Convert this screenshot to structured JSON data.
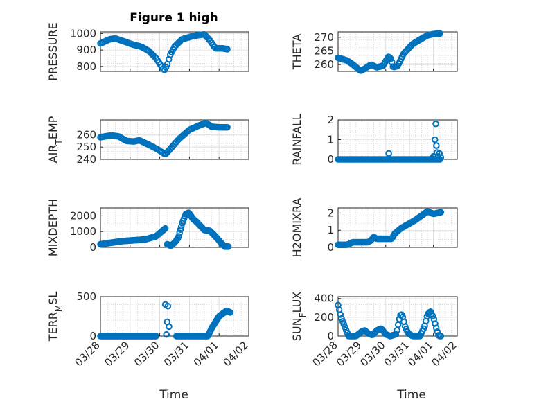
{
  "figure": {
    "title": "Figure 1 high"
  },
  "x_ticks": [
    "03/28",
    "03/29",
    "03/30",
    "03/31",
    "04/01",
    "04/02"
  ],
  "x_label": "Time",
  "marker_color": "#0072BD",
  "chart_data": [
    {
      "type": "scatter",
      "ylabel": "PRESSURE",
      "ylim": [
        770,
        1010
      ],
      "yticks": [
        800,
        900,
        1000
      ],
      "xlim": [
        0,
        4
      ],
      "grid": true,
      "keypoints": [
        [
          0,
          940
        ],
        [
          0.25,
          965
        ],
        [
          0.4,
          970
        ],
        [
          0.6,
          955
        ],
        [
          0.85,
          935
        ],
        [
          1.1,
          920
        ],
        [
          1.3,
          895
        ],
        [
          1.5,
          850
        ],
        [
          1.65,
          800
        ],
        [
          1.72,
          775
        ],
        [
          1.8,
          810
        ],
        [
          1.88,
          870
        ],
        [
          2.0,
          920
        ],
        [
          2.2,
          965
        ],
        [
          2.5,
          985
        ],
        [
          2.8,
          995
        ],
        [
          2.95,
          960
        ],
        [
          3.1,
          910
        ],
        [
          3.3,
          910
        ],
        [
          3.42,
          905
        ]
      ]
    },
    {
      "type": "scatter",
      "ylabel": "THETA",
      "ylim": [
        257.5,
        272
      ],
      "yticks": [
        260,
        265,
        270
      ],
      "xlim": [
        0,
        4
      ],
      "grid": true,
      "keypoints": [
        [
          0,
          262.5
        ],
        [
          0.3,
          261.5
        ],
        [
          0.5,
          260
        ],
        [
          0.75,
          257.7
        ],
        [
          0.9,
          258.5
        ],
        [
          1.1,
          260
        ],
        [
          1.3,
          259
        ],
        [
          1.5,
          259.5
        ],
        [
          1.7,
          263
        ],
        [
          1.78,
          262
        ],
        [
          1.85,
          259
        ],
        [
          2.0,
          259.5
        ],
        [
          2.2,
          264
        ],
        [
          2.5,
          267.5
        ],
        [
          2.8,
          269.5
        ],
        [
          3.0,
          270.7
        ],
        [
          3.2,
          271.2
        ],
        [
          3.42,
          271.4
        ]
      ]
    },
    {
      "type": "scatter",
      "ylabel": "AIR_TEMP",
      "ylim": [
        240,
        272
      ],
      "yticks": [
        240,
        250,
        260
      ],
      "xlim": [
        0,
        4
      ],
      "grid": true,
      "keypoints": [
        [
          0,
          258
        ],
        [
          0.3,
          259.5
        ],
        [
          0.5,
          258.5
        ],
        [
          0.7,
          255
        ],
        [
          0.9,
          254.5
        ],
        [
          1.05,
          255.5
        ],
        [
          1.3,
          252
        ],
        [
          1.55,
          248
        ],
        [
          1.75,
          244
        ],
        [
          1.9,
          249
        ],
        [
          2.1,
          256
        ],
        [
          2.4,
          264
        ],
        [
          2.7,
          268
        ],
        [
          2.85,
          269.5
        ],
        [
          3.0,
          266.5
        ],
        [
          3.2,
          266
        ],
        [
          3.42,
          266
        ]
      ]
    },
    {
      "type": "scatter",
      "ylabel": "RAINFALL",
      "ylim": [
        0,
        2
      ],
      "yticks": [
        0,
        1,
        2
      ],
      "xlim": [
        0,
        4
      ],
      "grid": true,
      "keypoints": [
        [
          0,
          0
        ],
        [
          3.42,
          0
        ]
      ],
      "extra_points": [
        [
          1.7,
          0.3
        ],
        [
          3.15,
          0.05
        ],
        [
          3.2,
          0.15
        ],
        [
          3.25,
          1.0
        ],
        [
          3.28,
          1.8
        ],
        [
          3.3,
          0.7
        ],
        [
          3.32,
          0.35
        ],
        [
          3.35,
          0.15
        ],
        [
          3.4,
          0.3
        ],
        [
          3.45,
          0.1
        ]
      ]
    },
    {
      "type": "scatter",
      "ylabel": "MIXDEPTH",
      "ylim": [
        0,
        2500
      ],
      "yticks": [
        0,
        1000,
        2000
      ],
      "xlim": [
        0,
        4
      ],
      "grid": true,
      "keypoints": [
        [
          0,
          200
        ],
        [
          0.3,
          300
        ],
        [
          0.6,
          400
        ],
        [
          0.9,
          450
        ],
        [
          1.2,
          500
        ],
        [
          1.5,
          700
        ],
        [
          1.75,
          1200
        ]
      ],
      "keypoints_2": [
        [
          1.8,
          200
        ],
        [
          1.9,
          100
        ],
        [
          2.0,
          300
        ],
        [
          2.1,
          600
        ],
        [
          2.2,
          1500
        ],
        [
          2.3,
          2100
        ],
        [
          2.38,
          2200
        ],
        [
          2.5,
          1800
        ],
        [
          2.6,
          1600
        ],
        [
          2.8,
          1100
        ],
        [
          2.95,
          1050
        ],
        [
          3.1,
          700
        ],
        [
          3.25,
          300
        ],
        [
          3.35,
          50
        ],
        [
          3.45,
          50
        ]
      ]
    },
    {
      "type": "scatter",
      "ylabel": "H2OMIXRA",
      "ylim": [
        0,
        2.3
      ],
      "yticks": [
        0,
        1,
        2
      ],
      "xlim": [
        0,
        4
      ],
      "grid": true,
      "keypoints": [
        [
          0,
          0.15
        ],
        [
          0.3,
          0.15
        ],
        [
          0.5,
          0.3
        ],
        [
          0.8,
          0.3
        ],
        [
          1.0,
          0.3
        ],
        [
          1.1,
          0.4
        ],
        [
          1.2,
          0.6
        ],
        [
          1.3,
          0.5
        ],
        [
          1.6,
          0.5
        ],
        [
          1.8,
          0.5
        ],
        [
          1.9,
          0.8
        ],
        [
          2.1,
          1.1
        ],
        [
          2.3,
          1.3
        ],
        [
          2.6,
          1.6
        ],
        [
          2.8,
          1.85
        ],
        [
          3.0,
          2.1
        ],
        [
          3.2,
          1.95
        ],
        [
          3.45,
          2.05
        ]
      ]
    },
    {
      "type": "scatter",
      "ylabel": "TERR_MSL",
      "ylim": [
        0,
        500
      ],
      "yticks": [
        0,
        500
      ],
      "xlim": [
        0,
        4
      ],
      "grid": true,
      "keypoints": [
        [
          0,
          0
        ],
        [
          1.5,
          0
        ]
      ],
      "keypoints_2": [
        [
          2.05,
          0
        ],
        [
          2.9,
          0
        ],
        [
          3.0,
          100
        ],
        [
          3.2,
          250
        ],
        [
          3.4,
          320
        ],
        [
          3.5,
          300
        ]
      ],
      "extra_points": [
        [
          1.75,
          400
        ],
        [
          1.82,
          380
        ],
        [
          1.8,
          180
        ],
        [
          1.85,
          120
        ],
        [
          1.78,
          20
        ]
      ]
    },
    {
      "type": "scatter",
      "ylabel": "SUN_FLUX",
      "ylim": [
        0,
        420
      ],
      "yticks": [
        0,
        200,
        400
      ],
      "xlim": [
        0,
        4
      ],
      "grid": true,
      "keypoints": [
        [
          0,
          330
        ],
        [
          0.1,
          200
        ],
        [
          0.25,
          80
        ],
        [
          0.35,
          0
        ],
        [
          0.6,
          0
        ],
        [
          0.8,
          50
        ],
        [
          0.9,
          60
        ],
        [
          1.0,
          30
        ],
        [
          1.15,
          10
        ],
        [
          1.3,
          60
        ],
        [
          1.45,
          80
        ],
        [
          1.6,
          20
        ],
        [
          1.75,
          0
        ],
        [
          1.95,
          20
        ],
        [
          2.08,
          220
        ],
        [
          2.15,
          230
        ],
        [
          2.25,
          100
        ],
        [
          2.35,
          30
        ],
        [
          2.5,
          0
        ],
        [
          2.75,
          0
        ],
        [
          2.9,
          100
        ],
        [
          3.0,
          230
        ],
        [
          3.1,
          260
        ],
        [
          3.2,
          200
        ],
        [
          3.3,
          80
        ],
        [
          3.38,
          0
        ],
        [
          3.45,
          0
        ]
      ]
    }
  ]
}
